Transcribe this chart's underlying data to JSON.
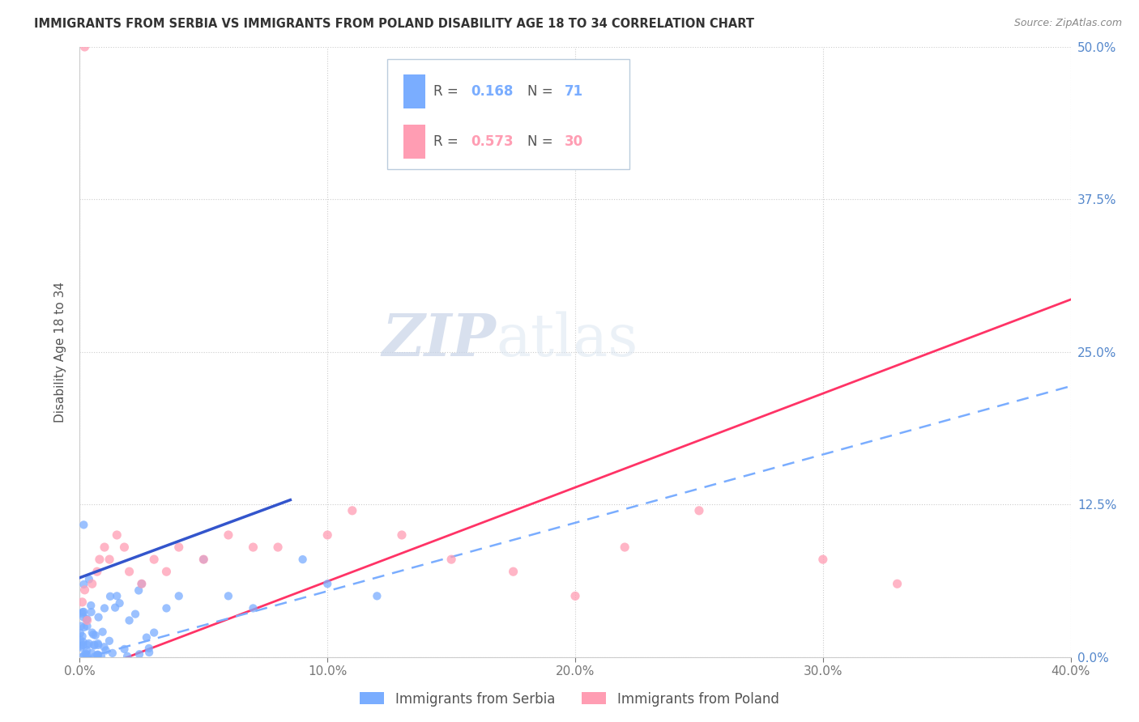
{
  "title": "IMMIGRANTS FROM SERBIA VS IMMIGRANTS FROM POLAND DISABILITY AGE 18 TO 34 CORRELATION CHART",
  "source": "Source: ZipAtlas.com",
  "ylabel_label": "Disability Age 18 to 34",
  "x_ticks": [
    0.0,
    0.1,
    0.2,
    0.3,
    0.4
  ],
  "y_ticks": [
    0.0,
    0.125,
    0.25,
    0.375,
    0.5
  ],
  "x_ticklabels": [
    "0.0%",
    "10.0%",
    "20.0%",
    "30.0%",
    "40.0%"
  ],
  "y_ticklabels": [
    "0.0%",
    "12.5%",
    "25.0%",
    "37.5%",
    "50.0%"
  ],
  "x_lim": [
    0,
    0.4
  ],
  "y_lim": [
    0,
    0.5
  ],
  "R_serbia": 0.168,
  "N_serbia": 71,
  "R_poland": 0.573,
  "N_poland": 30,
  "serbia_color": "#7aadff",
  "poland_color": "#ff9db3",
  "serbia_line_color": "#3355cc",
  "poland_line_color": "#ff3366",
  "dashed_line_color": "#7aadff",
  "watermark_zip": "ZIP",
  "watermark_atlas": "atlas",
  "legend_facecolor": "#f0f4ff",
  "legend_edgecolor": "#aabbdd",
  "bottom_legend_serbia": "Immigrants from Serbia",
  "bottom_legend_poland": "Immigrants from Poland"
}
